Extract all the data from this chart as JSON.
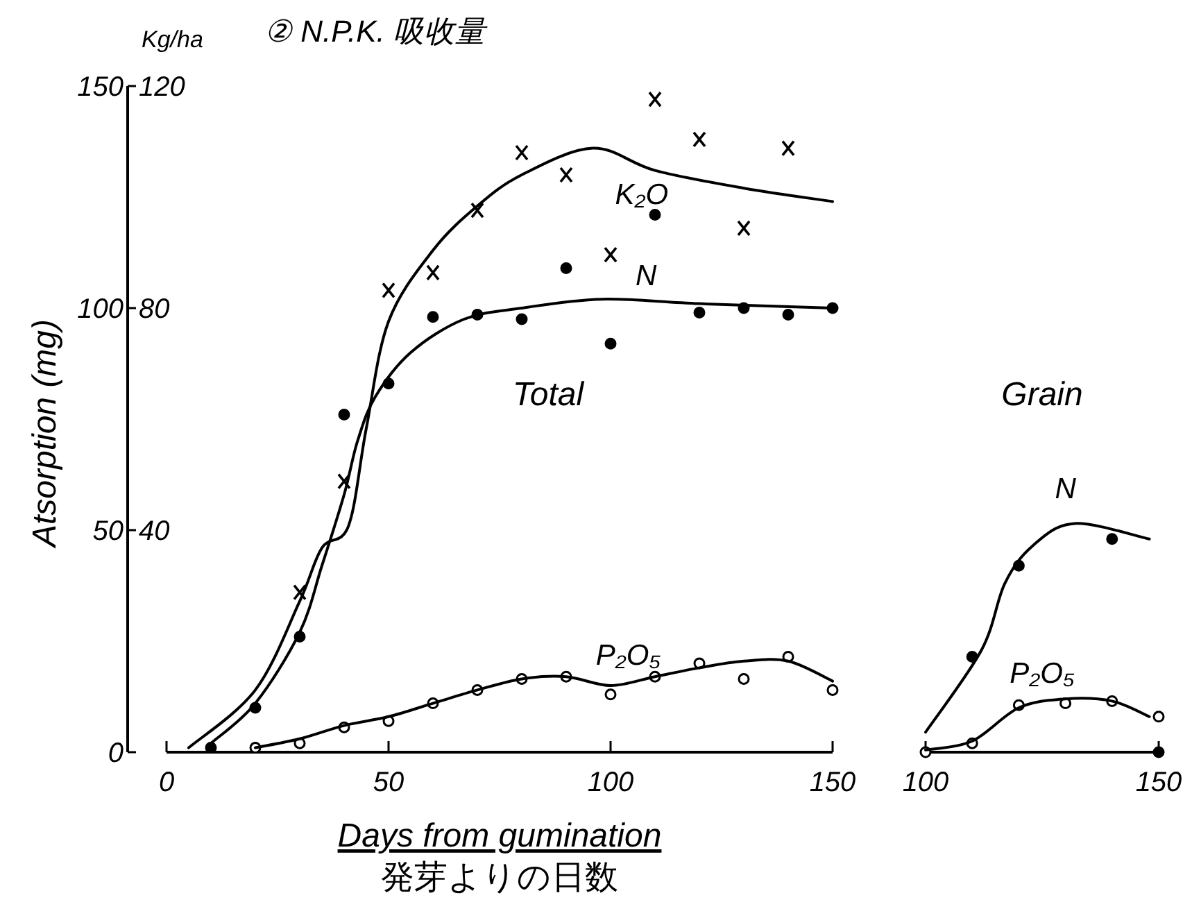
{
  "chart_data": [
    {
      "type": "scatter",
      "title": "② N.P.K. 吸收量",
      "subtitle": "Total",
      "xlabel": "Days from gumination",
      "ylabel": "Atsorption (mg)",
      "y2label": "Kg/ha",
      "annotations": [
        "発芽よりの日数"
      ],
      "xlim": [
        0,
        150
      ],
      "xticks": [
        0,
        50,
        100,
        150
      ],
      "ylim": [
        0,
        150
      ],
      "yticks": [
        0,
        50,
        100,
        150
      ],
      "y2lim": [
        0,
        120
      ],
      "y2ticks": [
        40,
        80,
        120
      ],
      "series": [
        {
          "type": "scatter",
          "marker": "cross",
          "color": "#000000",
          "x": [
            30,
            40,
            50,
            60,
            70,
            80,
            90,
            100,
            110,
            120,
            130,
            140
          ],
          "values": [
            36,
            61,
            104,
            108,
            122,
            135,
            130,
            112,
            147,
            138,
            118,
            136
          ]
        },
        {
          "type": "line",
          "name": "K₂O",
          "marker": "none",
          "color": "#000000",
          "x": [
            5,
            20,
            30,
            35,
            41,
            45,
            50,
            60,
            70,
            80,
            96,
            110,
            130,
            150
          ],
          "values": [
            1,
            14,
            34,
            46,
            51,
            73,
            97,
            113,
            123,
            130,
            136,
            131,
            127,
            124
          ]
        },
        {
          "type": "scatter",
          "marker": "circle",
          "color": "#000000",
          "x": [
            10,
            20,
            30,
            40,
            50,
            60,
            70,
            80,
            90,
            100,
            110,
            120,
            130,
            140,
            150
          ],
          "values": [
            1,
            10,
            26,
            76,
            83,
            98,
            98.5,
            97.5,
            109,
            92,
            121,
            99,
            100,
            98.5,
            100
          ]
        },
        {
          "type": "line",
          "name": "N",
          "marker": "none",
          "color": "#000000",
          "x": [
            10,
            20,
            30,
            35,
            40,
            43,
            47,
            55,
            67,
            80,
            98,
            120,
            150
          ],
          "values": [
            2,
            11,
            27,
            42,
            58,
            70,
            80,
            90,
            97.5,
            100,
            102,
            101,
            100
          ]
        },
        {
          "type": "scatter",
          "marker": "circle",
          "color": "#ffffff",
          "x": [
            20,
            30,
            40,
            50,
            60,
            70,
            80,
            90,
            100,
            110,
            120,
            130,
            140,
            150
          ],
          "values": [
            1,
            2,
            5.6,
            7,
            11,
            14,
            16.5,
            17,
            13,
            17,
            20,
            16.5,
            21.5,
            14
          ]
        },
        {
          "type": "line",
          "name": "P₂O₅",
          "marker": "none",
          "color": "#000000",
          "x": [
            20,
            30,
            40,
            50,
            60,
            70,
            80,
            90,
            100,
            110,
            120,
            130,
            140,
            150
          ],
          "values": [
            1,
            3,
            6,
            8,
            11,
            14,
            16.5,
            17,
            15,
            17,
            19,
            20.5,
            20.5,
            16
          ]
        }
      ]
    },
    {
      "type": "scatter",
      "subtitle": "Grain",
      "tick_labels": "x",
      "xlim": [
        100,
        150
      ],
      "xticks": [
        100,
        150
      ],
      "ylim": [
        0,
        150
      ],
      "series": [
        {
          "type": "scatter",
          "marker": "circle",
          "color": "#000000",
          "x": [
            110,
            120,
            140,
            150
          ],
          "values": [
            21.5,
            42,
            48,
            0
          ]
        },
        {
          "type": "line",
          "name": "N",
          "marker": "none",
          "color": "#000000",
          "x": [
            100,
            112,
            117,
            123,
            132,
            148
          ],
          "values": [
            4.5,
            23,
            38,
            46.5,
            51.5,
            48
          ]
        },
        {
          "type": "scatter",
          "marker": "circle",
          "color": "#ffffff",
          "x": [
            100,
            110,
            120,
            130,
            140,
            150
          ],
          "values": [
            0,
            2,
            10.6,
            11,
            11.5,
            8
          ]
        },
        {
          "type": "line",
          "name": "P₂O₅",
          "marker": "none",
          "color": "#000000",
          "x": [
            100,
            110,
            120,
            130,
            140,
            148
          ],
          "values": [
            0.5,
            2.5,
            10,
            12,
            11.5,
            8
          ]
        }
      ]
    }
  ]
}
